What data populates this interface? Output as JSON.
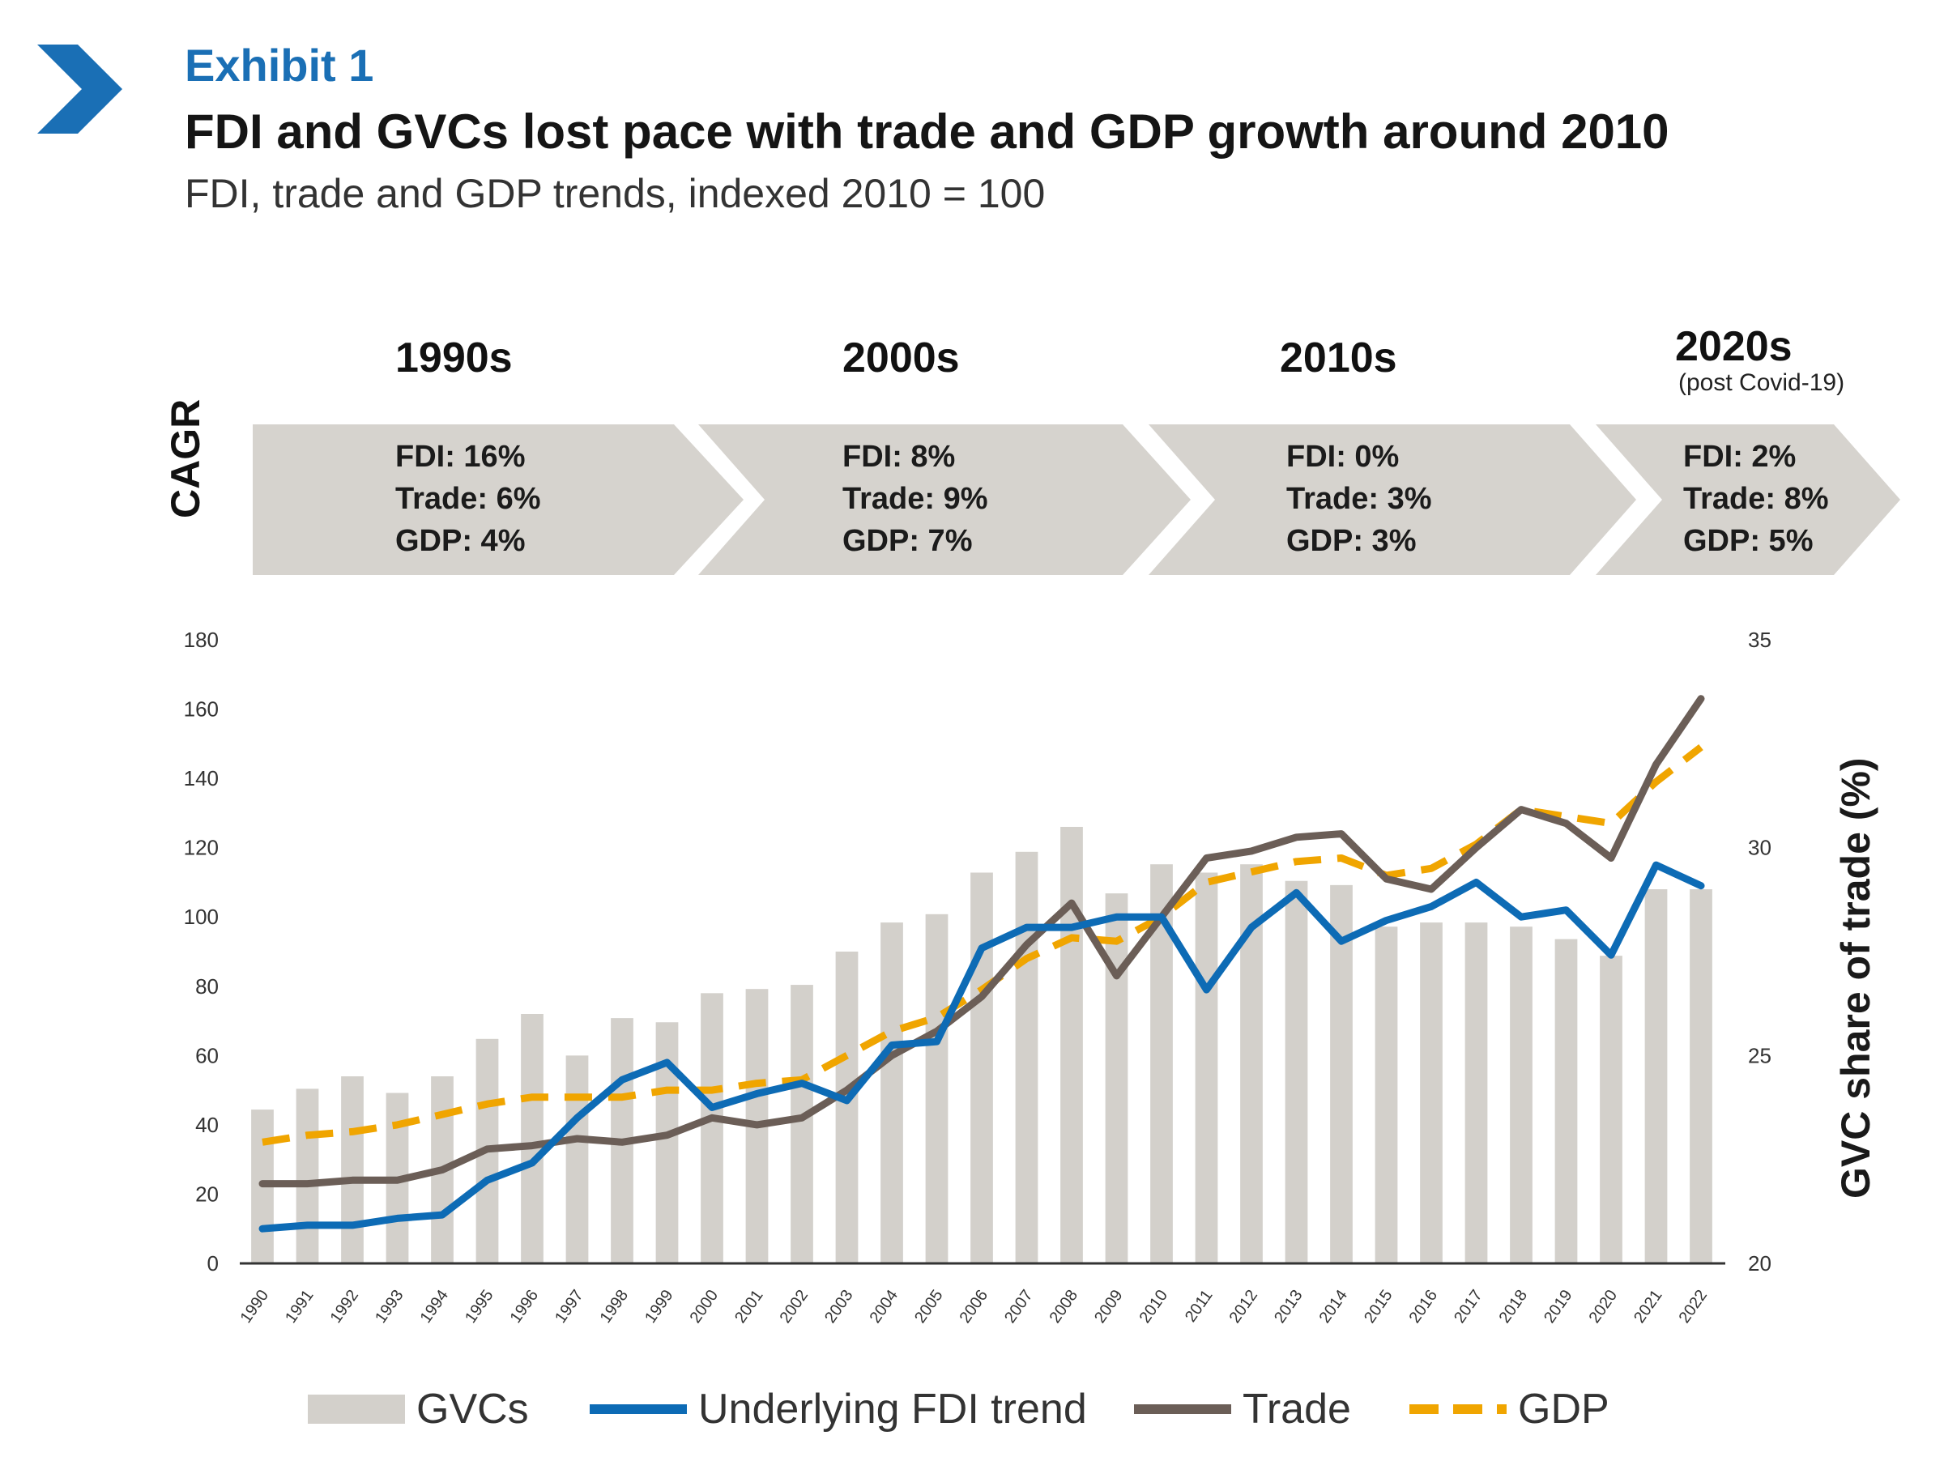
{
  "header": {
    "exhibit": "Exhibit 1",
    "title": "FDI and GVCs lost pace with trade and GDP growth around 2010",
    "subtitle": "FDI, trade and GDP trends, indexed 2010 = 100"
  },
  "timeline": {
    "cagr_label": "CAGR",
    "periods": [
      {
        "label": "1990s",
        "note": "",
        "fdi": "FDI: 16%",
        "trade": "Trade: 6%",
        "gdp": "GDP: 4%"
      },
      {
        "label": "2000s",
        "note": "",
        "fdi": "FDI: 8%",
        "trade": "Trade: 9%",
        "gdp": "GDP: 7%"
      },
      {
        "label": "2010s",
        "note": "",
        "fdi": "FDI: 0%",
        "trade": "Trade: 3%",
        "gdp": "GDP: 3%"
      },
      {
        "label": "2020s",
        "note": "(post Covid-19)",
        "fdi": "FDI: 2%",
        "trade": "Trade: 8%",
        "gdp": "GDP: 5%"
      }
    ]
  },
  "chart_data": {
    "type": "bar+line",
    "x": [
      "1990",
      "1991",
      "1992",
      "1993",
      "1994",
      "1995",
      "1996",
      "1997",
      "1998",
      "1999",
      "2000",
      "2001",
      "2002",
      "2003",
      "2004",
      "2005",
      "2006",
      "2007",
      "2008",
      "2009",
      "2010",
      "2011",
      "2012",
      "2013",
      "2014",
      "2015",
      "2016",
      "2017",
      "2018",
      "2019",
      "2020",
      "2021",
      "2022"
    ],
    "ylim_left": [
      0,
      180
    ],
    "yticks_left": [
      0,
      20,
      40,
      60,
      80,
      100,
      120,
      140,
      160,
      180
    ],
    "ylim_right": [
      20,
      35
    ],
    "yticks_right": [
      20,
      25,
      30,
      35
    ],
    "ylabel_right": "GVC share of trade (%)",
    "grid": false,
    "legend_position": "bottom",
    "series": [
      {
        "name": "GVCs",
        "kind": "bar",
        "axis": "right",
        "color": "#d3d0cb",
        "values": [
          23.7,
          24.2,
          24.5,
          24.1,
          24.5,
          25.4,
          26.0,
          25.0,
          25.9,
          25.8,
          26.5,
          26.6,
          26.7,
          27.5,
          28.2,
          28.4,
          29.4,
          29.9,
          30.5,
          28.9,
          29.6,
          29.4,
          29.6,
          29.2,
          29.1,
          28.1,
          28.2,
          28.2,
          28.1,
          27.8,
          27.4,
          29.0,
          29.0
        ]
      },
      {
        "name": "Underlying FDI trend",
        "kind": "line",
        "axis": "left",
        "color": "#0d6bb5",
        "values": [
          10,
          11,
          11,
          13,
          14,
          24,
          29,
          42,
          53,
          58,
          45,
          49,
          52,
          47,
          63,
          64,
          91,
          97,
          97,
          100,
          100,
          79,
          97,
          107,
          93,
          99,
          103,
          110,
          100,
          102,
          89,
          115,
          109
        ]
      },
      {
        "name": "Trade",
        "kind": "line",
        "axis": "left",
        "color": "#6b5e57",
        "values": [
          23,
          23,
          24,
          24,
          27,
          33,
          34,
          36,
          35,
          37,
          42,
          40,
          42,
          50,
          60,
          67,
          77,
          92,
          104,
          83,
          100,
          117,
          119,
          123,
          124,
          111,
          108,
          120,
          131,
          127,
          117,
          144,
          163
        ]
      },
      {
        "name": "GDP",
        "kind": "line-dashed",
        "axis": "left",
        "color": "#f0a500",
        "values": [
          35,
          37,
          38,
          40,
          43,
          46,
          48,
          48,
          48,
          50,
          50,
          52,
          53,
          60,
          67,
          71,
          79,
          88,
          94,
          93,
          100,
          110,
          113,
          116,
          117,
          112,
          114,
          121,
          131,
          129,
          127,
          139,
          149
        ]
      }
    ]
  },
  "legend": [
    {
      "label": "GVCs",
      "swatch": "bar",
      "color": "#d3d0cb"
    },
    {
      "label": "Underlying FDI trend",
      "swatch": "line",
      "color": "#0d6bb5"
    },
    {
      "label": "Trade",
      "swatch": "line",
      "color": "#6b5e57"
    },
    {
      "label": "GDP",
      "swatch": "dash",
      "color": "#f0a500"
    }
  ]
}
